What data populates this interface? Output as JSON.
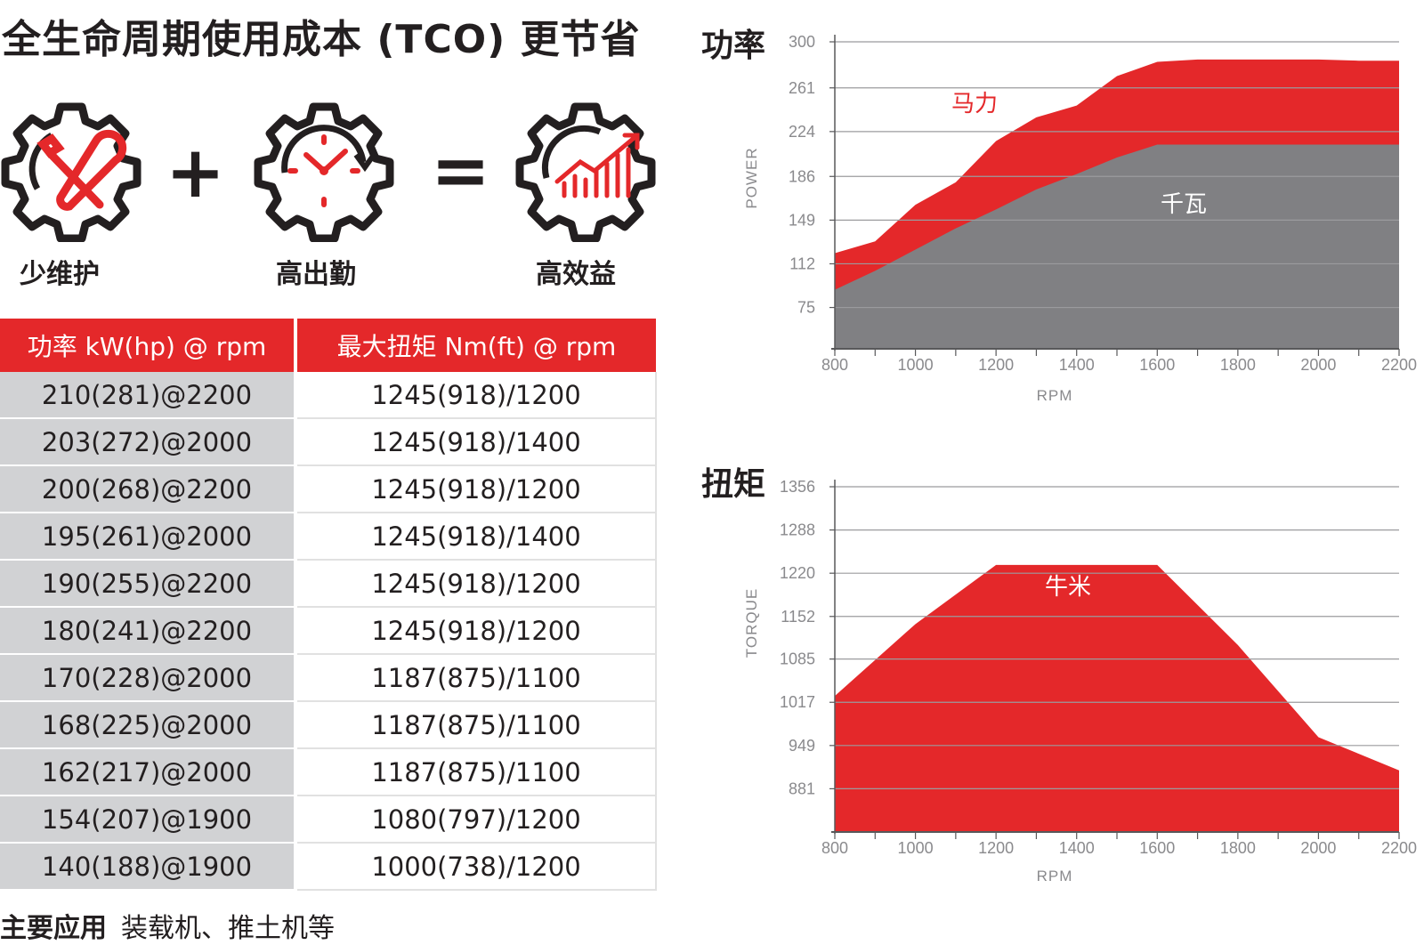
{
  "page": {
    "title": "全生命周期使用成本 (TCO) 更节省",
    "icons": [
      {
        "name": "wrench-screwdriver-gear-icon",
        "label": "少维护"
      },
      {
        "name": "clock-gear-icon",
        "label": "高出勤"
      },
      {
        "name": "growth-chart-gear-icon",
        "label": "高效益"
      }
    ],
    "plus": "+",
    "equals": "=",
    "accent_color": "#e4282a",
    "gray_color": "#808083",
    "table": {
      "headers": [
        "功率 kW(hp) @ rpm",
        "最大扭矩 Nm(ft) @ rpm"
      ],
      "rows": [
        [
          "210(281)@2200",
          "1245(918)/1200"
        ],
        [
          "203(272)@2000",
          "1245(918)/1400"
        ],
        [
          "200(268)@2200",
          "1245(918)/1200"
        ],
        [
          "195(261)@2000",
          "1245(918)/1400"
        ],
        [
          "190(255)@2200",
          "1245(918)/1200"
        ],
        [
          "180(241)@2200",
          "1245(918)/1200"
        ],
        [
          "170(228)@2000",
          "1187(875)/1100"
        ],
        [
          "168(225)@2000",
          "1187(875)/1100"
        ],
        [
          "162(217)@2000",
          "1187(875)/1100"
        ],
        [
          "154(207)@1900",
          "1080(797)/1200"
        ],
        [
          "140(188)@1900",
          "1000(738)/1200"
        ]
      ]
    },
    "application": {
      "label": "主要应用",
      "value": "装载机、推土机等"
    }
  },
  "chart_data": [
    {
      "type": "area",
      "title": "功率",
      "xlabel": "RPM",
      "ylabel": "POWER",
      "xlim": [
        800,
        2200
      ],
      "ylim": [
        40,
        300
      ],
      "x_ticks": [
        800,
        1000,
        1200,
        1400,
        1600,
        1800,
        2000,
        2200
      ],
      "y_ticks": [
        75,
        112,
        149,
        186,
        224,
        261,
        300
      ],
      "grid": true,
      "x": [
        800,
        900,
        1000,
        1100,
        1200,
        1300,
        1400,
        1500,
        1600,
        1700,
        1800,
        1900,
        2000,
        2100,
        2200
      ],
      "series": [
        {
          "name": "马力",
          "color": "#e4282a",
          "values": [
            121,
            131,
            162,
            181,
            216,
            236,
            246,
            271,
            283,
            285,
            285,
            285,
            285,
            284,
            284
          ]
        },
        {
          "name": "千瓦",
          "color": "#808083",
          "values": [
            90,
            106,
            124,
            142,
            158,
            175,
            188,
            202,
            213,
            213,
            213,
            213,
            213,
            213,
            213
          ]
        }
      ]
    },
    {
      "type": "area",
      "title": "扭矩",
      "xlabel": "RPM",
      "ylabel": "TORQUE",
      "xlim": [
        800,
        2200
      ],
      "ylim": [
        813,
        1356
      ],
      "x_ticks": [
        800,
        1000,
        1200,
        1400,
        1600,
        1800,
        2000,
        2200
      ],
      "y_ticks": [
        881,
        949,
        1017,
        1085,
        1152,
        1220,
        1288,
        1356
      ],
      "grid": true,
      "x": [
        800,
        1000,
        1200,
        1400,
        1600,
        1800,
        2000,
        2200
      ],
      "series": [
        {
          "name": "牛米",
          "color": "#e4282a",
          "values": [
            1027,
            1140,
            1233,
            1233,
            1233,
            1107,
            962,
            910
          ]
        }
      ]
    }
  ]
}
